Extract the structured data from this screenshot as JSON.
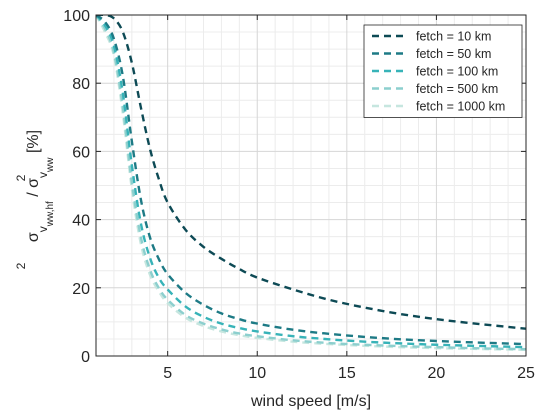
{
  "chart_data": {
    "type": "line",
    "xlabel": "wind speed [m/s]",
    "ylabel": {
      "sym": "σ",
      "num_sub": "v",
      "num_subsub": "ww,hf",
      "slash": "/",
      "den_sub": "v",
      "den_subsub": "ww",
      "sup": "2",
      "unit": "[%]"
    },
    "xlim": [
      1,
      25
    ],
    "ylim": [
      0,
      100
    ],
    "xticks": [
      5,
      10,
      15,
      20,
      25
    ],
    "yticks": [
      0,
      20,
      40,
      60,
      80,
      100
    ],
    "grid": true,
    "minor_grid": true,
    "legend_position": "top-right",
    "series": [
      {
        "name": "fetch = 10 km",
        "color": "#0d4a55",
        "x": [
          1.0,
          1.5,
          2.0,
          2.5,
          3.0,
          3.5,
          4.0,
          4.5,
          5.0,
          6.0,
          7.0,
          8.0,
          9.0,
          10.0,
          12.0,
          14.0,
          16.0,
          18.0,
          20.0,
          22.0,
          25.0
        ],
        "y": [
          100,
          100,
          99,
          95,
          86,
          73,
          61,
          52,
          45,
          37,
          32,
          28.5,
          25.5,
          23,
          19.5,
          16.5,
          14.2,
          12.3,
          10.8,
          9.6,
          8
        ]
      },
      {
        "name": "fetch = 50 km",
        "color": "#1d7a85",
        "x": [
          1.0,
          1.5,
          2.0,
          2.5,
          3.0,
          3.5,
          4.0,
          4.5,
          5.0,
          6.0,
          7.0,
          8.0,
          9.0,
          10.0,
          12.0,
          14.0,
          16.0,
          18.0,
          20.0,
          22.0,
          25.0
        ],
        "y": [
          100,
          98,
          93,
          82,
          63,
          46,
          35,
          28.5,
          24,
          18.5,
          15,
          12.5,
          10.8,
          9.5,
          7.7,
          6.5,
          5.6,
          4.9,
          4.4,
          4,
          3.5
        ]
      },
      {
        "name": "fetch = 100 km",
        "color": "#37b3b8",
        "x": [
          1.0,
          1.5,
          2.0,
          2.5,
          3.0,
          3.5,
          4.0,
          4.5,
          5.0,
          6.0,
          7.0,
          8.0,
          9.0,
          10.0,
          12.0,
          14.0,
          16.0,
          18.0,
          20.0,
          22.0,
          25.0
        ],
        "y": [
          100,
          97,
          91,
          77,
          56,
          39,
          29,
          23,
          19.5,
          14.5,
          11.5,
          9.5,
          8.2,
          7.2,
          5.8,
          4.9,
          4.2,
          3.7,
          3.3,
          3,
          2.6
        ]
      },
      {
        "name": "fetch = 500 km",
        "color": "#8ccfce",
        "x": [
          1.0,
          1.5,
          2.0,
          2.5,
          3.0,
          3.5,
          4.0,
          4.5,
          5.0,
          6.0,
          7.0,
          8.0,
          9.0,
          10.0,
          12.0,
          14.0,
          16.0,
          18.0,
          20.0,
          22.0,
          25.0
        ],
        "y": [
          100,
          96,
          89,
          73,
          51,
          35,
          25.5,
          20,
          16.5,
          12,
          9.5,
          7.8,
          6.6,
          5.8,
          4.6,
          3.8,
          3.3,
          2.9,
          2.6,
          2.3,
          2
        ]
      },
      {
        "name": "fetch = 1000 km",
        "color": "#c6e6df",
        "x": [
          1.0,
          1.5,
          2.0,
          2.5,
          3.0,
          3.5,
          4.0,
          4.5,
          5.0,
          6.0,
          7.0,
          8.0,
          9.0,
          10.0,
          12.0,
          14.0,
          16.0,
          18.0,
          20.0,
          22.0,
          25.0
        ],
        "y": [
          100,
          95,
          88,
          71,
          49,
          33,
          24,
          19,
          15.5,
          11.2,
          8.8,
          7.2,
          6.1,
          5.3,
          4.2,
          3.5,
          3,
          2.6,
          2.3,
          2.1,
          1.8
        ]
      }
    ]
  }
}
